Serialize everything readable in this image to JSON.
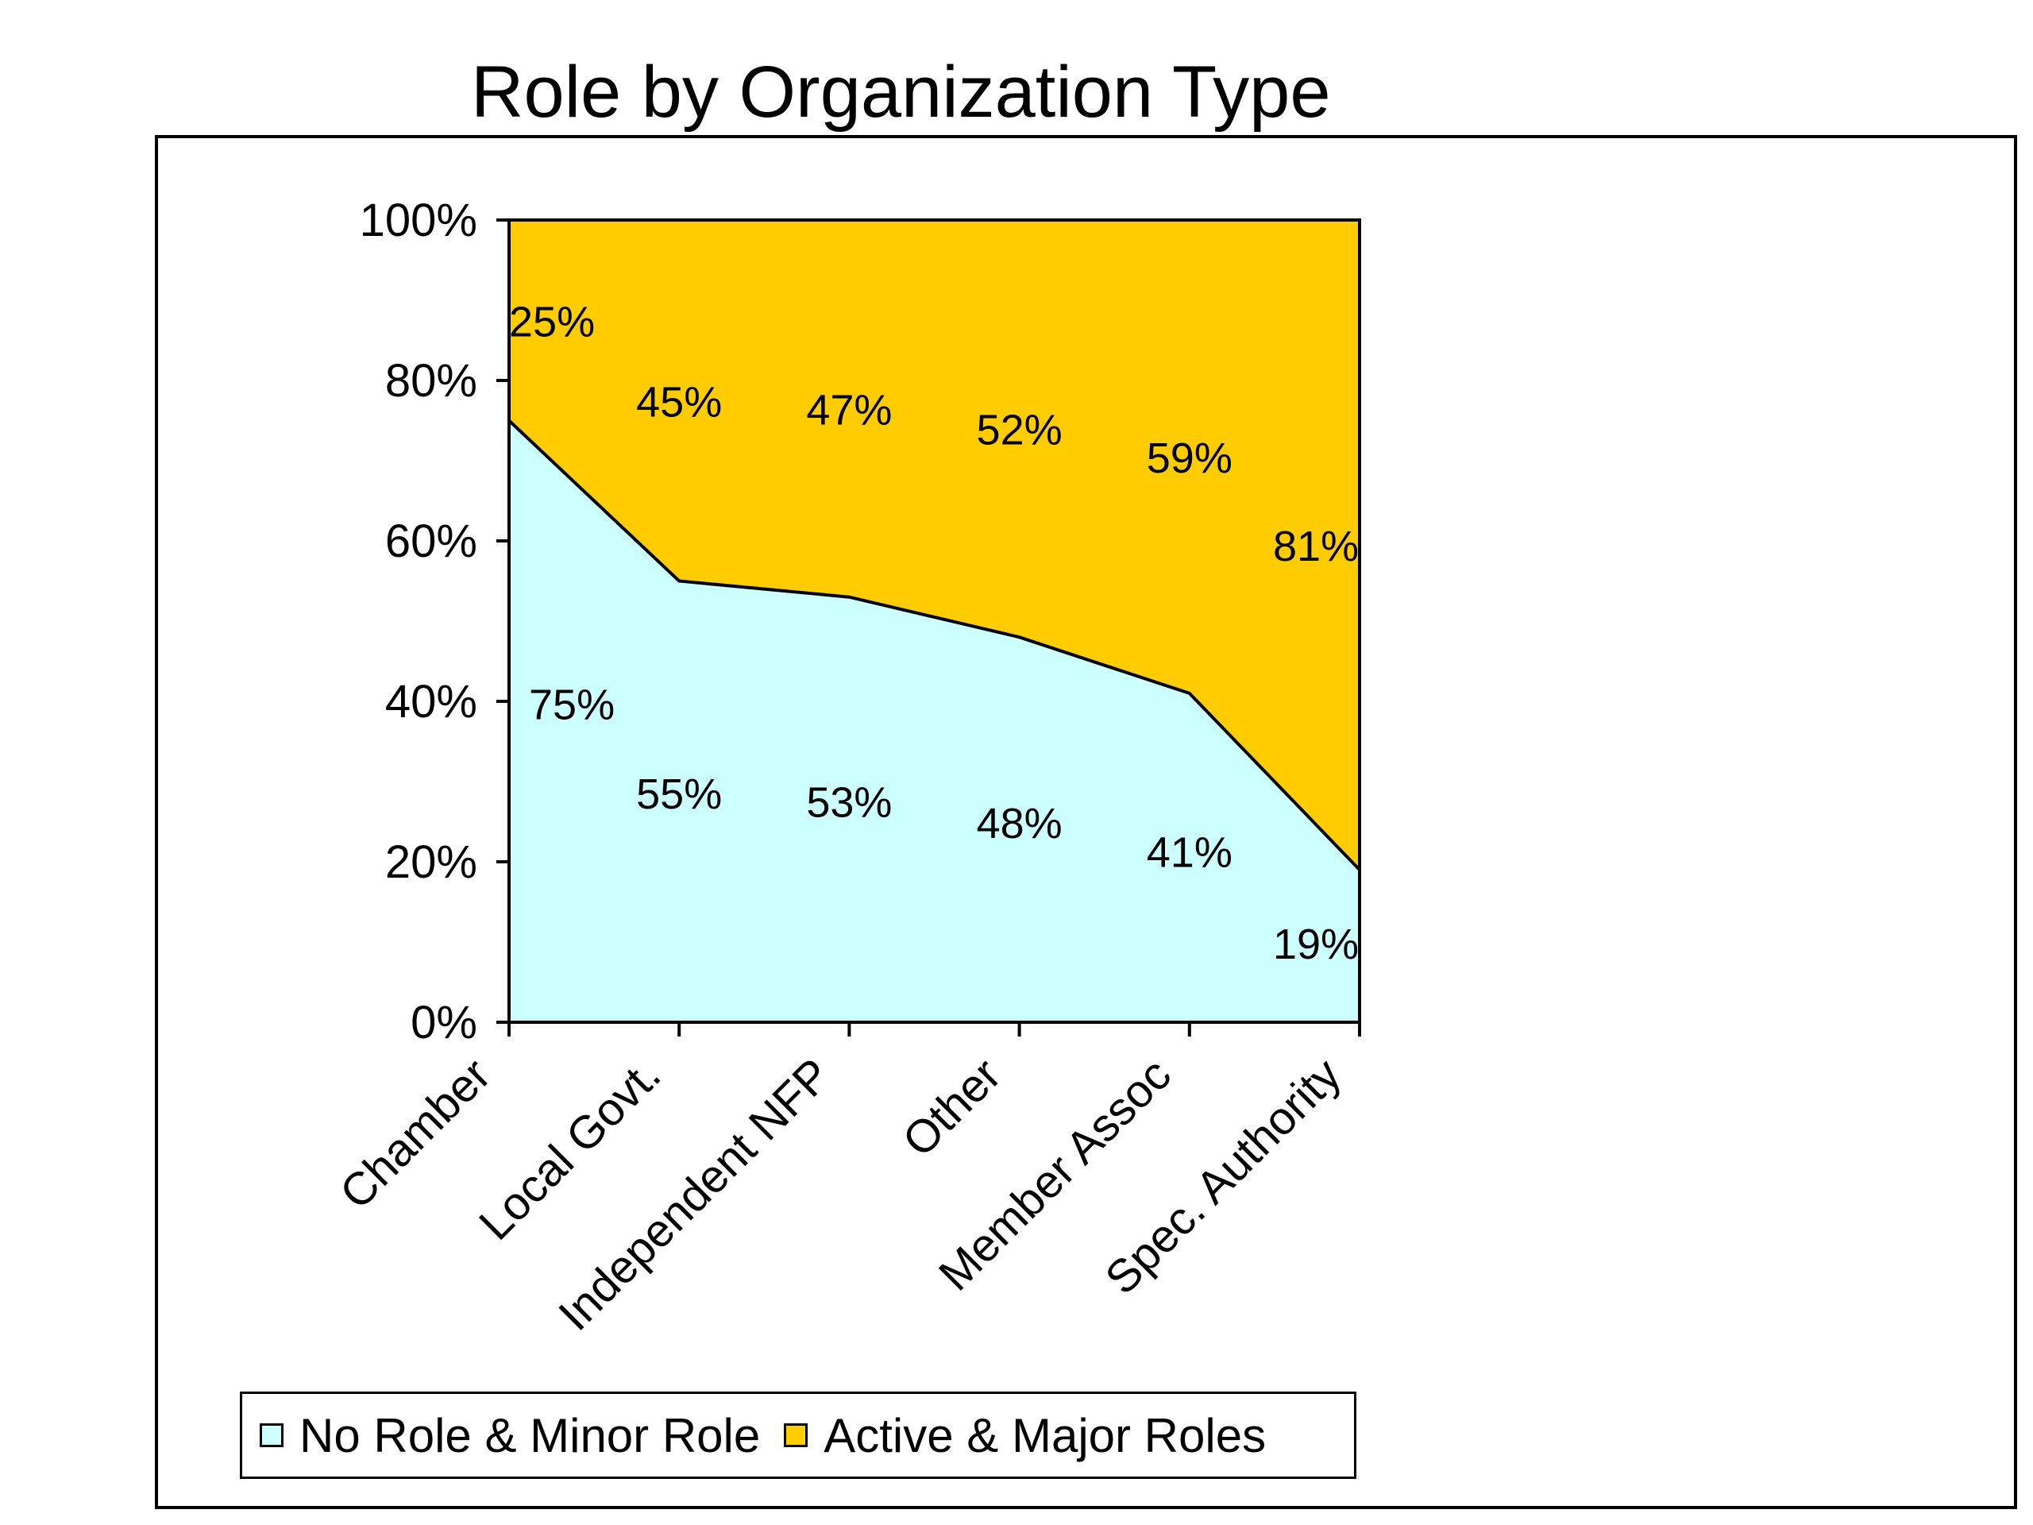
{
  "chart_data": {
    "type": "area",
    "stacked": true,
    "normalized": true,
    "title": "Role by Organization Type",
    "xlabel": "",
    "ylabel": "",
    "categories": [
      "Chamber",
      "Local Govt.",
      "Independent NFP",
      "Other",
      "Member Assoc",
      "Spec. Authority"
    ],
    "ylim": [
      0,
      100
    ],
    "yticks": [
      "0%",
      "20%",
      "40%",
      "60%",
      "80%",
      "100%"
    ],
    "grid": false,
    "legend_position": "bottom",
    "series": [
      {
        "name": "No Role & Minor Role",
        "color": "#ccffff",
        "values": [
          75,
          55,
          53,
          48,
          41,
          19
        ],
        "labels": [
          "75%",
          "55%",
          "53%",
          "48%",
          "41%",
          "19%"
        ]
      },
      {
        "name": "Active & Major Roles",
        "color": "#ffcc00",
        "values": [
          25,
          45,
          47,
          52,
          59,
          81
        ],
        "labels": [
          "25%",
          "45%",
          "47%",
          "52%",
          "59%",
          "81%"
        ]
      }
    ]
  }
}
